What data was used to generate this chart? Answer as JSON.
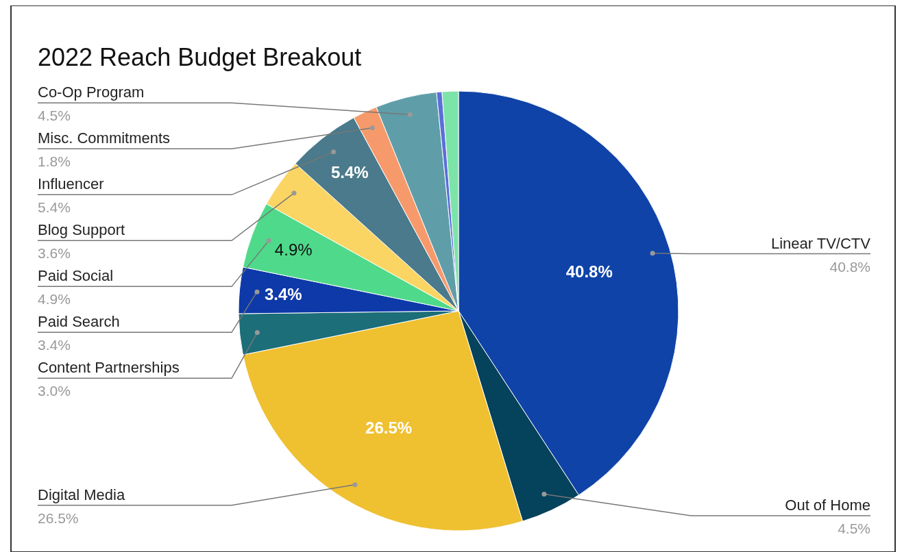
{
  "chart_data": {
    "type": "pie",
    "title": "2022 Reach Budget Breakout",
    "categories": [
      "Linear TV/CTV",
      "Out of Home",
      "Digital Media",
      "Content Partnerships",
      "Paid Search",
      "Paid Social",
      "Blog Support",
      "Influencer",
      "Misc. Commitments",
      "Co-Op Program",
      null,
      null
    ],
    "values": [
      40.8,
      4.5,
      26.5,
      3.0,
      3.4,
      4.9,
      3.6,
      5.4,
      1.8,
      4.5,
      0.4,
      1.2
    ],
    "colors": [
      "#0f43a8",
      "#05425c",
      "#efc030",
      "#1c6e78",
      "#0e39a9",
      "#4fd98b",
      "#fad563",
      "#4a7a8b",
      "#f69a6c",
      "#5f9ea8",
      "#5b6fd9",
      "#7de4a9"
    ],
    "value_labels": [
      "40.8%",
      "4.5%",
      "26.5%",
      "3.0%",
      "3.4%",
      "4.9%",
      "3.6%",
      "5.4%",
      "1.8%",
      "4.5%",
      null,
      null
    ],
    "annotations": [
      {
        "text": "40.8%",
        "x": "Linear TV/CTV"
      },
      {
        "text": "26.5%",
        "x": "Digital Media"
      },
      {
        "text": "3.4%",
        "x": "Paid Search"
      },
      {
        "text": "4.9%",
        "x": "Paid Social"
      },
      {
        "text": "5.4%",
        "x": "Influencer"
      }
    ]
  }
}
